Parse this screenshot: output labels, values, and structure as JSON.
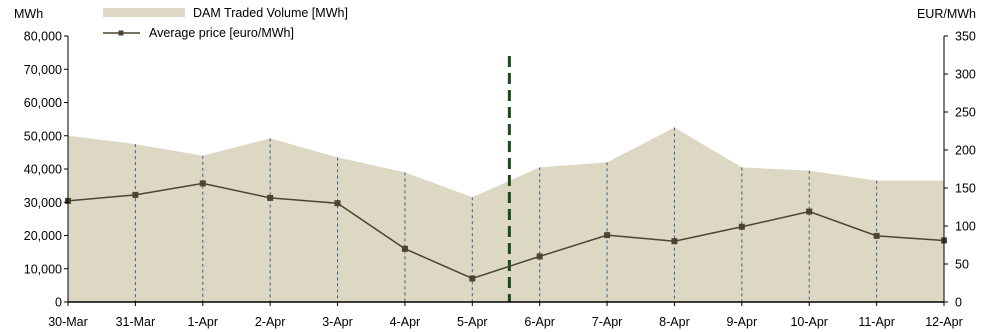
{
  "chart_data": {
    "type": "area",
    "categories": [
      "30-Mar",
      "31-Mar",
      "1-Apr",
      "2-Apr",
      "3-Apr",
      "4-Apr",
      "5-Apr",
      "6-Apr",
      "7-Apr",
      "8-Apr",
      "9-Apr",
      "10-Apr",
      "11-Apr",
      "12-Apr"
    ],
    "left_axis": {
      "unit": "MWh",
      "ylim": [
        0,
        80000
      ],
      "ticks": [
        "0",
        "10,000",
        "20,000",
        "30,000",
        "40,000",
        "50,000",
        "60,000",
        "70,000",
        "80,000"
      ]
    },
    "right_axis": {
      "unit": "EUR/MWh",
      "ylim": [
        0,
        350
      ],
      "ticks": [
        "0",
        "50",
        "100",
        "150",
        "200",
        "250",
        "300",
        "350"
      ]
    },
    "series": [
      {
        "name": "DAM Traded Volume [MWh]",
        "type": "area",
        "axis": "left",
        "color": "#ddd8c4",
        "values": [
          50000,
          47500,
          44000,
          49200,
          43500,
          39000,
          31500,
          40500,
          42000,
          52500,
          40500,
          39500,
          36500,
          36500
        ]
      },
      {
        "name": "Average price  [euro/MWh]",
        "type": "line",
        "axis": "right",
        "color": "#4a4530",
        "values": [
          133,
          141,
          156,
          137,
          130,
          70,
          31,
          60,
          88,
          80,
          99,
          119,
          87,
          81
        ]
      }
    ],
    "marker": {
      "type": "vertical-dashed-line",
      "between": [
        "5-Apr",
        "6-Apr"
      ],
      "color": "#1a4a1a"
    },
    "grid": false,
    "legend": "top-left"
  }
}
